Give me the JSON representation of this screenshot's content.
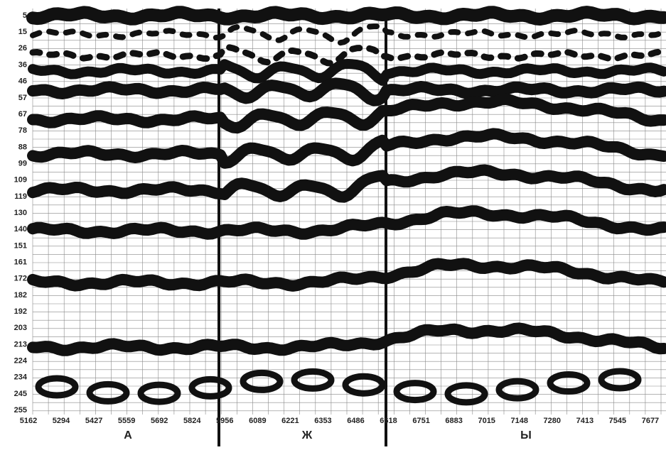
{
  "y_axis": {
    "labels": [
      5,
      15,
      26,
      36,
      46,
      57,
      67,
      78,
      88,
      99,
      109,
      119,
      130,
      140,
      151,
      161,
      172,
      182,
      192,
      203,
      213,
      224,
      234,
      245,
      255
    ]
  },
  "x_axis": {
    "labels": [
      5162,
      5294,
      5427,
      5559,
      5692,
      5824,
      5956,
      6089,
      6221,
      6353,
      6486,
      6618,
      6751,
      6883,
      7015,
      7148,
      7280,
      7413,
      7545,
      7677
    ]
  },
  "sections": [
    "А",
    "Ж",
    "Ы"
  ]
}
